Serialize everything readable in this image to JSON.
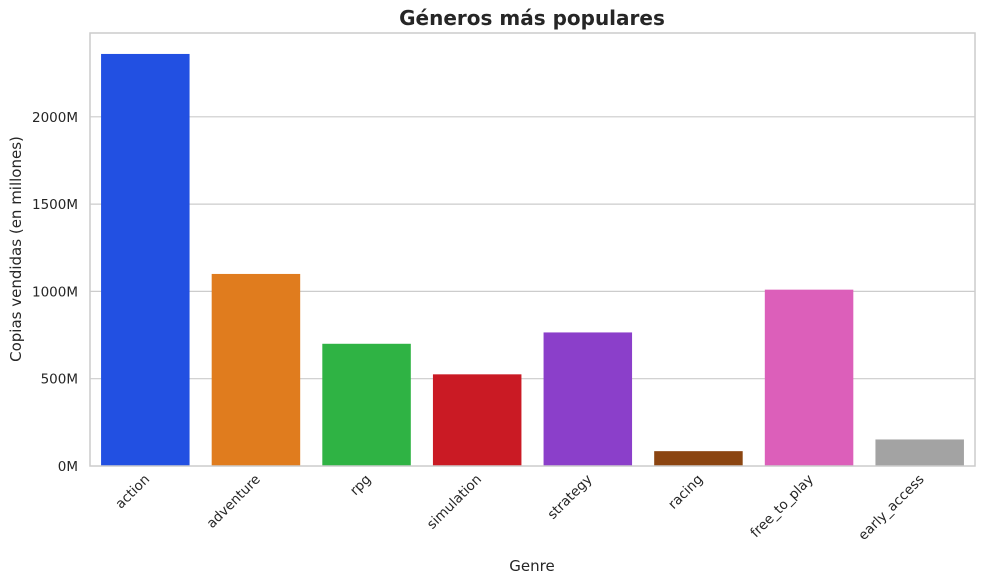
{
  "chart_data": {
    "type": "bar",
    "title": "Géneros más populares",
    "xlabel": "Genre",
    "ylabel": "Copias vendidas (en millones)",
    "categories": [
      "action",
      "adventure",
      "rpg",
      "simulation",
      "strategy",
      "racing",
      "free_to_play",
      "early_access"
    ],
    "values": [
      2360,
      1100,
      700,
      525,
      765,
      85,
      1010,
      152
    ],
    "colors": [
      "#2250e2",
      "#e07c1e",
      "#2fb344",
      "#ca1a24",
      "#8b3fca",
      "#8b4511",
      "#dc5fba",
      "#a3a3a3"
    ],
    "ylim": [
      0,
      2480
    ],
    "yticks": [
      0,
      500,
      1000,
      1500,
      2000
    ],
    "ytick_suffix": "M",
    "grid": "horizontal",
    "legend": "none"
  }
}
